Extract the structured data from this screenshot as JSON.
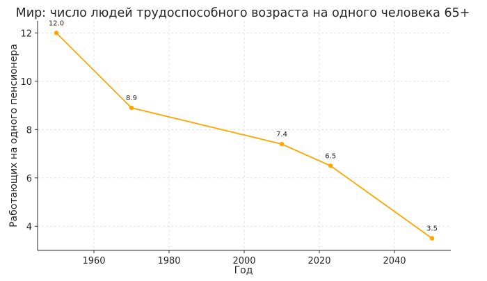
{
  "chart_data": {
    "type": "line",
    "title": "Мир: число людей трудоспособного возраста на одного человека 65+",
    "xlabel": "Год",
    "ylabel": "Работающих на одного пенсионера",
    "xlim": [
      1945,
      2055
    ],
    "ylim": [
      3.0,
      12.5
    ],
    "xticks": [
      1960,
      1980,
      2000,
      2020,
      2040
    ],
    "yticks": [
      4,
      6,
      8,
      10,
      12
    ],
    "grid": true,
    "series": [
      {
        "color": "#FFA500",
        "points": [
          {
            "x": 1950,
            "y": 12.0,
            "label": "12.0"
          },
          {
            "x": 1970,
            "y": 8.9,
            "label": "8.9"
          },
          {
            "x": 2010,
            "y": 7.4,
            "label": "7.4"
          },
          {
            "x": 2023,
            "y": 6.5,
            "label": "6.5"
          },
          {
            "x": 2050,
            "y": 3.5,
            "label": "3.5"
          }
        ]
      }
    ]
  }
}
